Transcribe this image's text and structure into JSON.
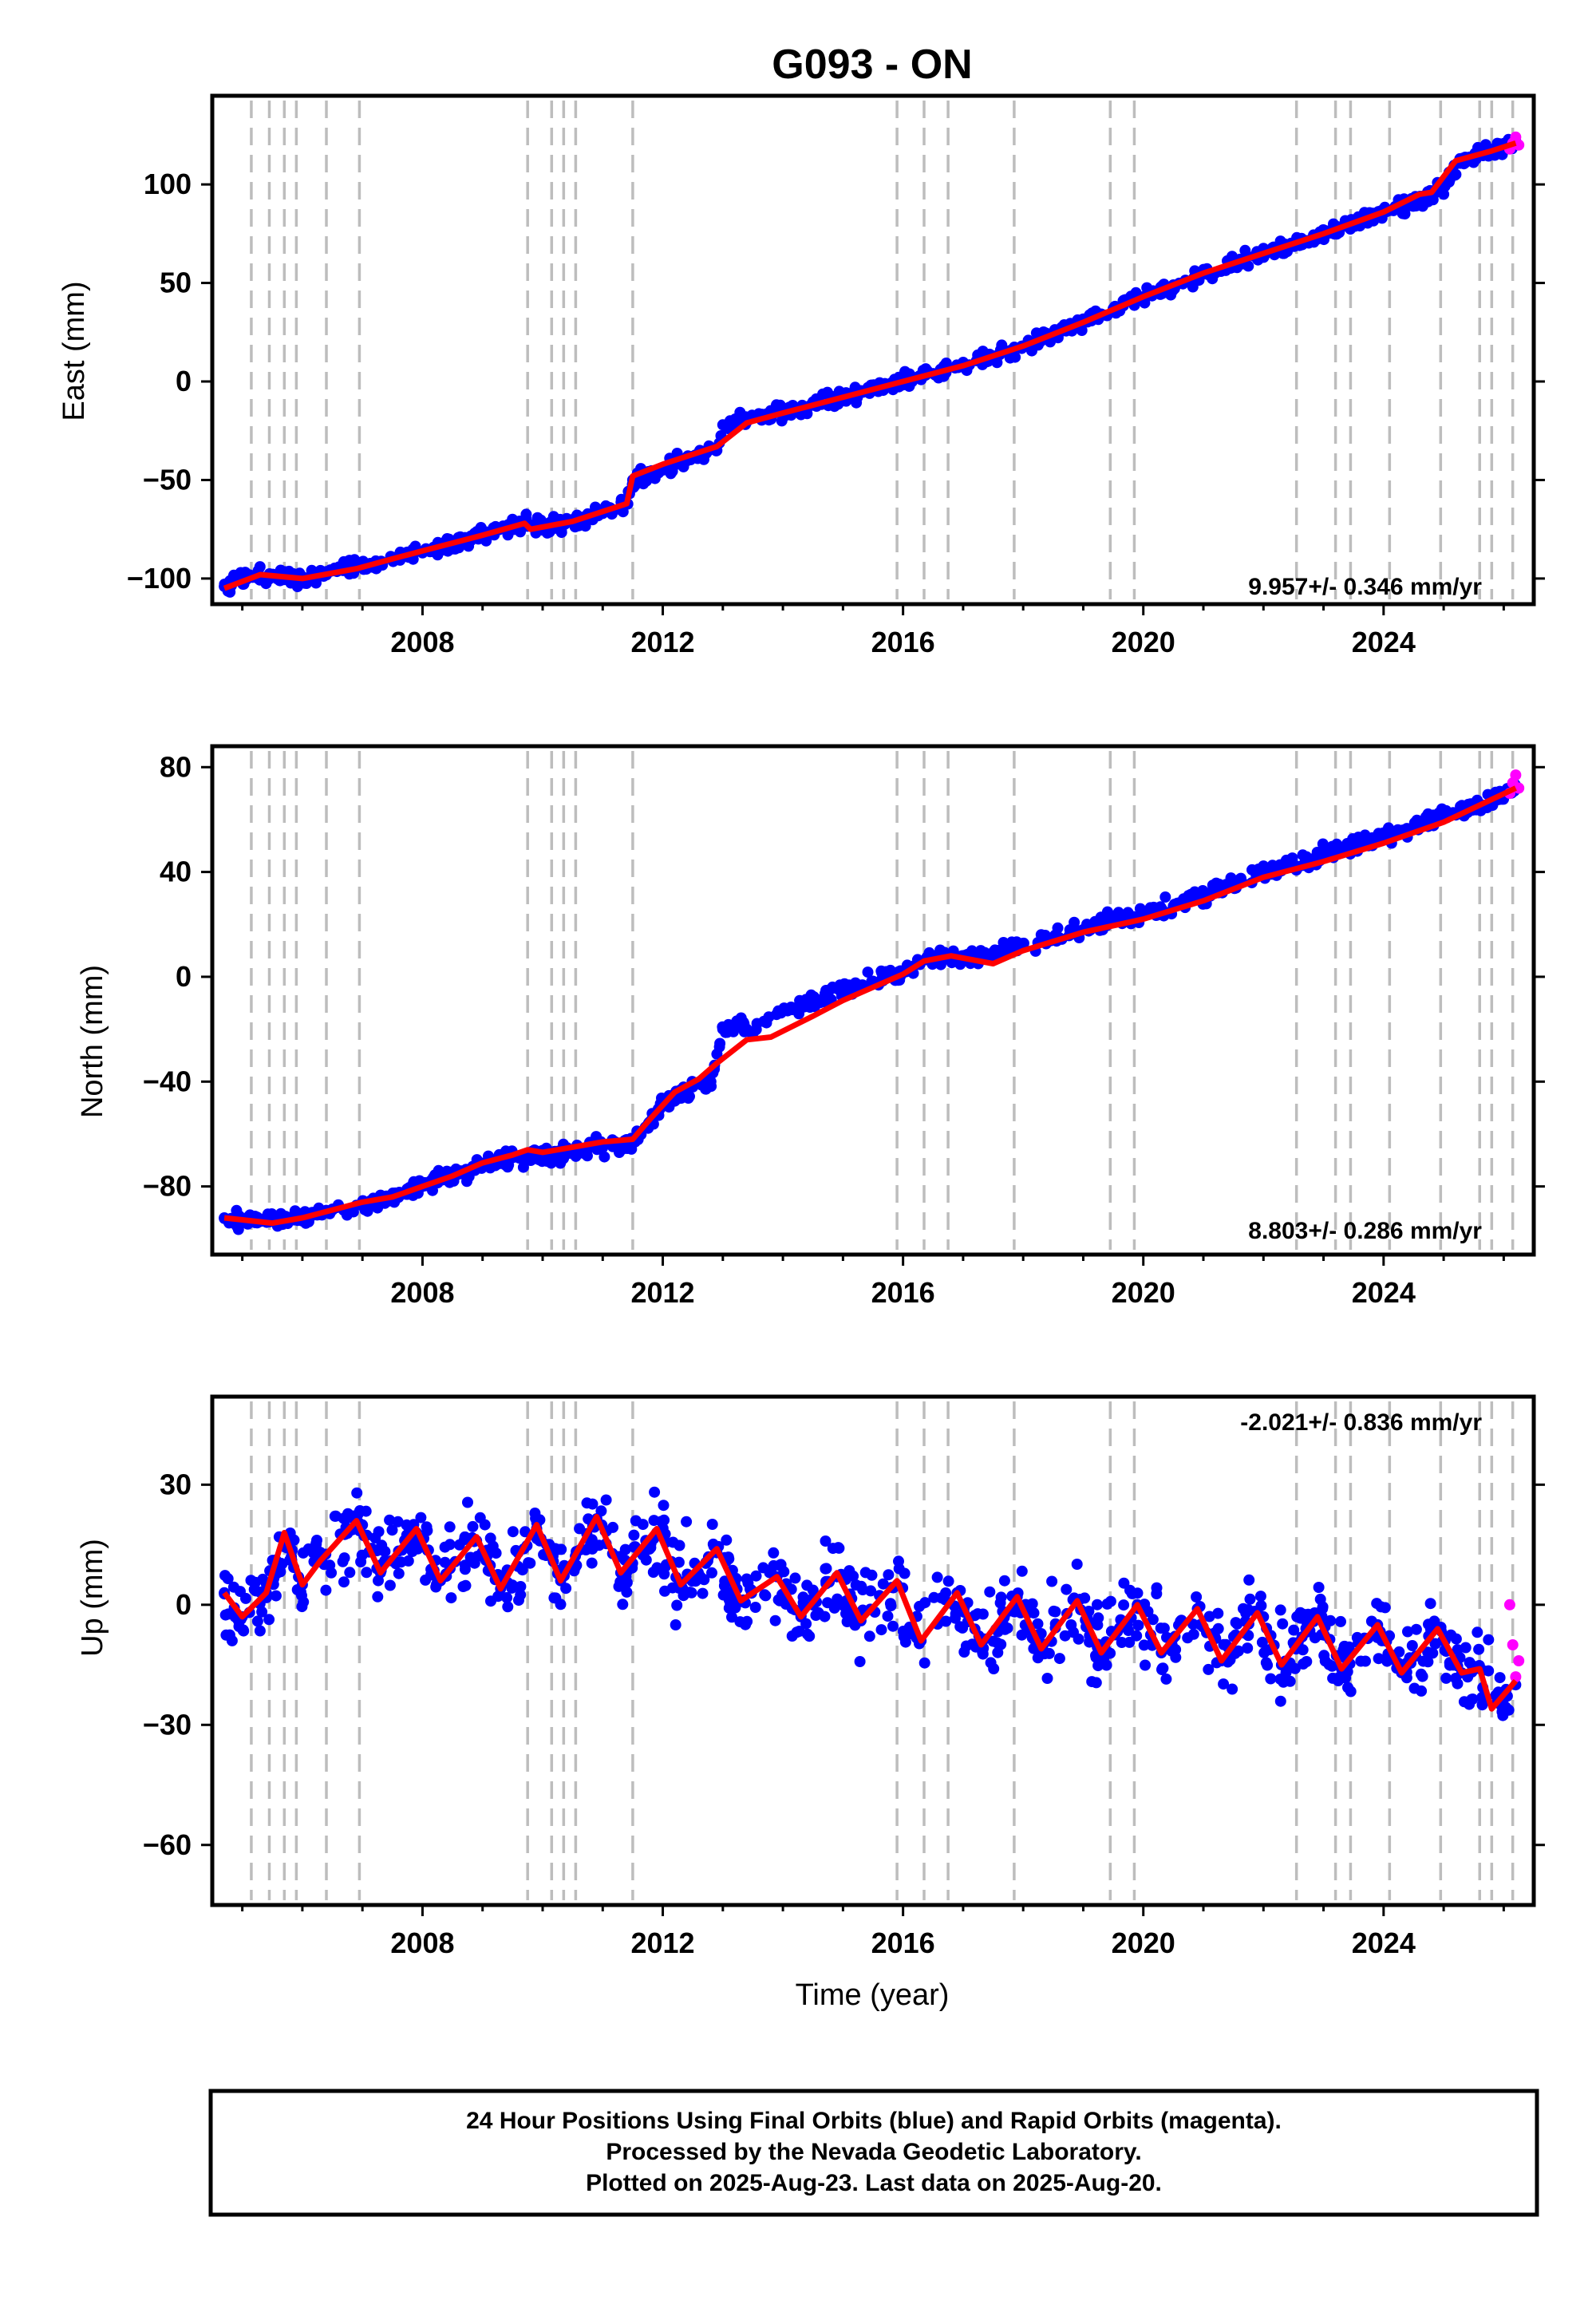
{
  "title": "G093 - ON",
  "colors": {
    "final_orbits": "#0000ff",
    "rapid_orbits": "#ff00ff",
    "model": "#ff0000",
    "events": "#bdbdbd",
    "frame": "#000000"
  },
  "xaxis": {
    "label": "Time (year)",
    "range": [
      2004.5,
      2026.5
    ],
    "ticks": [
      2008,
      2012,
      2016,
      2020,
      2024
    ],
    "tick_labels": [
      "2008",
      "2012",
      "2016",
      "2020",
      "2024"
    ]
  },
  "event_lines": [
    2005.15,
    2005.45,
    2005.7,
    2005.9,
    2006.4,
    2006.95,
    2009.75,
    2010.15,
    2010.35,
    2010.55,
    2011.5,
    2015.9,
    2016.35,
    2016.75,
    2017.85,
    2019.45,
    2019.85,
    2022.55,
    2023.2,
    2023.45,
    2024.1,
    2024.95,
    2025.6,
    2025.8,
    2026.15
  ],
  "footnote": [
    "24 Hour Positions Using Final Orbits (blue) and Rapid Orbits (magenta).",
    "Processed by the Nevada Geodetic Laboratory.",
    "Plotted on 2025-Aug-23. Last data on 2025-Aug-20."
  ],
  "chart_data": [
    {
      "type": "scatter",
      "component": "east",
      "ylabel": "East (mm)",
      "ylim": [
        -113,
        145
      ],
      "yticks": [
        -100,
        -50,
        0,
        50,
        100
      ],
      "ytick_labels": [
        "−100",
        "−50",
        "0",
        "50",
        "100"
      ],
      "rate_label": "9.957+/- 0.346 mm/yr",
      "rate_position": "bottom-right",
      "noise_amplitude_mm": 2.8,
      "seasonal_amplitude_mm": 2,
      "model": {
        "name": "model",
        "x": [
          2004.7,
          2005.3,
          2006.0,
          2006.9,
          2007.5,
          2008.0,
          2008.5,
          2009.0,
          2009.7,
          2009.8,
          2010.5,
          2011.4,
          2011.5,
          2012.0,
          2012.9,
          2013.4,
          2014.0,
          2015.0,
          2016.0,
          2017.0,
          2018.0,
          2019.0,
          2020.0,
          2021.0,
          2022.0,
          2023.0,
          2024.0,
          2024.6,
          2024.8,
          2025.2,
          2025.8,
          2026.2
        ],
        "y": [
          -105,
          -98,
          -100,
          -95,
          -90,
          -86,
          -82,
          -78,
          -72,
          -75,
          -71,
          -62,
          -48,
          -42,
          -33,
          -21,
          -16,
          -8,
          0,
          8,
          18,
          30,
          43,
          55,
          65,
          75,
          86,
          95,
          96,
          112,
          117,
          121
        ]
      },
      "final_orbits": {
        "name": "Final Orbits",
        "x": [
          2004.7,
          2005.0,
          2005.5,
          2006.0,
          2006.5,
          2007.0,
          2007.5,
          2008.0,
          2008.5,
          2009.0,
          2009.7,
          2010.0,
          2010.5,
          2011.0,
          2011.4,
          2011.5,
          2012.0,
          2012.5,
          2012.9,
          2013.0,
          2013.4,
          2014.0,
          2014.5,
          2015.0,
          2015.5,
          2016.0,
          2016.5,
          2017.0,
          2017.5,
          2018.0,
          2018.5,
          2019.0,
          2019.5,
          2020.0,
          2020.5,
          2021.0,
          2021.5,
          2022.0,
          2022.5,
          2023.0,
          2023.5,
          2024.0,
          2024.5,
          2024.8,
          2025.0,
          2025.3,
          2025.6,
          2026.0,
          2026.2
        ],
        "y": [
          -104,
          -100,
          -98,
          -100,
          -96,
          -94,
          -90,
          -87,
          -83,
          -78,
          -72,
          -74,
          -71,
          -67,
          -62,
          -50,
          -45,
          -38,
          -35,
          -22,
          -20,
          -16,
          -12,
          -8,
          -4,
          0,
          4,
          8,
          13,
          18,
          24,
          30,
          37,
          43,
          49,
          55,
          60,
          65,
          70,
          75,
          81,
          86,
          91,
          95,
          100,
          112,
          115,
          118,
          122
        ]
      },
      "rapid_orbits": {
        "name": "Rapid Orbits",
        "x": [
          2026.1,
          2026.15,
          2026.2,
          2026.25
        ],
        "y": [
          118,
          121,
          124,
          120
        ]
      }
    },
    {
      "type": "scatter",
      "component": "north",
      "ylabel": "North (mm)",
      "ylim": [
        -106,
        88
      ],
      "yticks": [
        -80,
        -40,
        0,
        40,
        80
      ],
      "ytick_labels": [
        "−80",
        "−40",
        "0",
        "40",
        "80"
      ],
      "rate_label": "8.803+/- 0.286 mm/yr",
      "rate_position": "bottom-right",
      "noise_amplitude_mm": 2.2,
      "seasonal_amplitude_mm": 1.5,
      "model": {
        "name": "model",
        "x": [
          2004.7,
          2005.5,
          2006.0,
          2007.0,
          2007.5,
          2008.0,
          2008.5,
          2009.0,
          2009.5,
          2009.75,
          2010.0,
          2010.5,
          2011.0,
          2011.5,
          2011.8,
          2012.2,
          2012.6,
          2012.9,
          2013.4,
          2013.8,
          2014.5,
          2015.0,
          2015.5,
          2016.0,
          2016.35,
          2016.8,
          2017.5,
          2018.0,
          2019.0,
          2020.0,
          2021.0,
          2022.0,
          2023.0,
          2024.0,
          2025.0,
          2026.2
        ],
        "y": [
          -92,
          -94,
          -92,
          -86,
          -84,
          -80,
          -76,
          -71,
          -68,
          -66,
          -67,
          -65,
          -63,
          -62,
          -54,
          -44,
          -39,
          -33,
          -24,
          -23,
          -15,
          -9,
          -4,
          1,
          6,
          8,
          5,
          10,
          17,
          22,
          29,
          38,
          44,
          51,
          59,
          72
        ]
      },
      "final_orbits": {
        "name": "Final Orbits",
        "x": [
          2004.7,
          2005.0,
          2005.5,
          2006.0,
          2006.5,
          2007.0,
          2007.5,
          2008.0,
          2008.5,
          2009.0,
          2009.5,
          2010.0,
          2010.5,
          2011.0,
          2011.5,
          2011.8,
          2012.0,
          2012.5,
          2012.8,
          2013.0,
          2013.3,
          2013.4,
          2014.0,
          2014.5,
          2015.0,
          2015.5,
          2016.0,
          2016.3,
          2016.5,
          2017.0,
          2017.5,
          2018.0,
          2018.5,
          2019.0,
          2019.5,
          2020.0,
          2020.5,
          2021.0,
          2021.5,
          2022.0,
          2022.5,
          2023.0,
          2023.5,
          2024.0,
          2024.5,
          2025.0,
          2025.5,
          2026.0,
          2026.2
        ],
        "y": [
          -92,
          -93,
          -93,
          -92,
          -89,
          -87,
          -84,
          -80,
          -76,
          -72,
          -69,
          -68,
          -67,
          -65,
          -63,
          -55,
          -48,
          -42,
          -40,
          -20,
          -17,
          -20,
          -13,
          -10,
          -5,
          -2,
          2,
          6,
          8,
          7,
          9,
          12,
          15,
          18,
          21,
          24,
          27,
          31,
          36,
          40,
          43,
          47,
          50,
          54,
          57,
          62,
          65,
          69,
          73
        ]
      },
      "rapid_orbits": {
        "name": "Rapid Orbits",
        "x": [
          2026.1,
          2026.15,
          2026.2,
          2026.25
        ],
        "y": [
          70,
          74,
          77,
          72
        ]
      }
    },
    {
      "type": "scatter",
      "component": "up",
      "ylabel": "Up (mm)",
      "ylim": [
        -75,
        52
      ],
      "yticks": [
        -60,
        -30,
        0,
        30
      ],
      "ytick_labels": [
        "−60",
        "−30",
        "0",
        "30"
      ],
      "rate_label": "-2.021+/- 0.836 mm/yr",
      "rate_position": "top-right",
      "noise_amplitude_mm": 7,
      "seasonal_amplitude_mm": 8,
      "model": {
        "name": "model",
        "x": [
          2004.7,
          2005.0,
          2005.4,
          2005.7,
          2006.0,
          2006.3,
          2006.9,
          2007.3,
          2007.9,
          2008.3,
          2008.9,
          2009.3,
          2009.9,
          2010.3,
          2010.9,
          2011.3,
          2011.9,
          2012.3,
          2012.9,
          2013.3,
          2013.9,
          2014.3,
          2014.9,
          2015.3,
          2015.9,
          2016.3,
          2016.9,
          2017.3,
          2017.9,
          2018.3,
          2018.9,
          2019.3,
          2019.9,
          2020.3,
          2020.9,
          2021.3,
          2021.9,
          2022.3,
          2022.9,
          2023.3,
          2023.9,
          2024.3,
          2024.9,
          2025.3,
          2025.6,
          2025.8,
          2026.2
        ],
        "y": [
          3,
          -3,
          3,
          18,
          5,
          11,
          21,
          8,
          19,
          6,
          17,
          4,
          20,
          6,
          22,
          8,
          19,
          5,
          14,
          1,
          7,
          -3,
          8,
          -4,
          6,
          -9,
          3,
          -10,
          2,
          -11,
          1,
          -12,
          0,
          -12,
          -1,
          -14,
          -2,
          -15,
          -3,
          -16,
          -5,
          -17,
          -6,
          -17,
          -16,
          -26,
          -19
        ]
      },
      "final_orbits": {
        "name": "Final Orbits",
        "x": [
          2004.7,
          2005.0,
          2005.4,
          2005.7,
          2006.0,
          2006.3,
          2006.9,
          2007.3,
          2007.9,
          2008.3,
          2008.9,
          2009.3,
          2009.9,
          2010.3,
          2010.9,
          2011.3,
          2011.9,
          2012.3,
          2012.9,
          2013.3,
          2013.9,
          2014.3,
          2014.9,
          2015.3,
          2015.9,
          2016.3,
          2016.9,
          2017.3,
          2017.9,
          2018.3,
          2018.9,
          2019.3,
          2019.9,
          2020.3,
          2020.9,
          2021.3,
          2021.9,
          2022.3,
          2022.9,
          2023.3,
          2023.9,
          2024.3,
          2024.9,
          2025.3,
          2025.6,
          2025.9,
          2026.2
        ],
        "y": [
          3,
          -3,
          3,
          16,
          5,
          11,
          20,
          8,
          18,
          6,
          16,
          4,
          19,
          6,
          21,
          8,
          18,
          5,
          13,
          1,
          7,
          -3,
          7,
          -4,
          5,
          -9,
          3,
          -10,
          2,
          -11,
          1,
          -12,
          0,
          -12,
          -1,
          -14,
          -2,
          -15,
          -3,
          -16,
          -5,
          -17,
          -6,
          -17,
          -16,
          -24,
          -20
        ]
      },
      "rapid_orbits": {
        "name": "Rapid Orbits",
        "x": [
          2026.1,
          2026.15,
          2026.2,
          2026.25
        ],
        "y": [
          0,
          -10,
          -18,
          -14
        ]
      }
    }
  ]
}
